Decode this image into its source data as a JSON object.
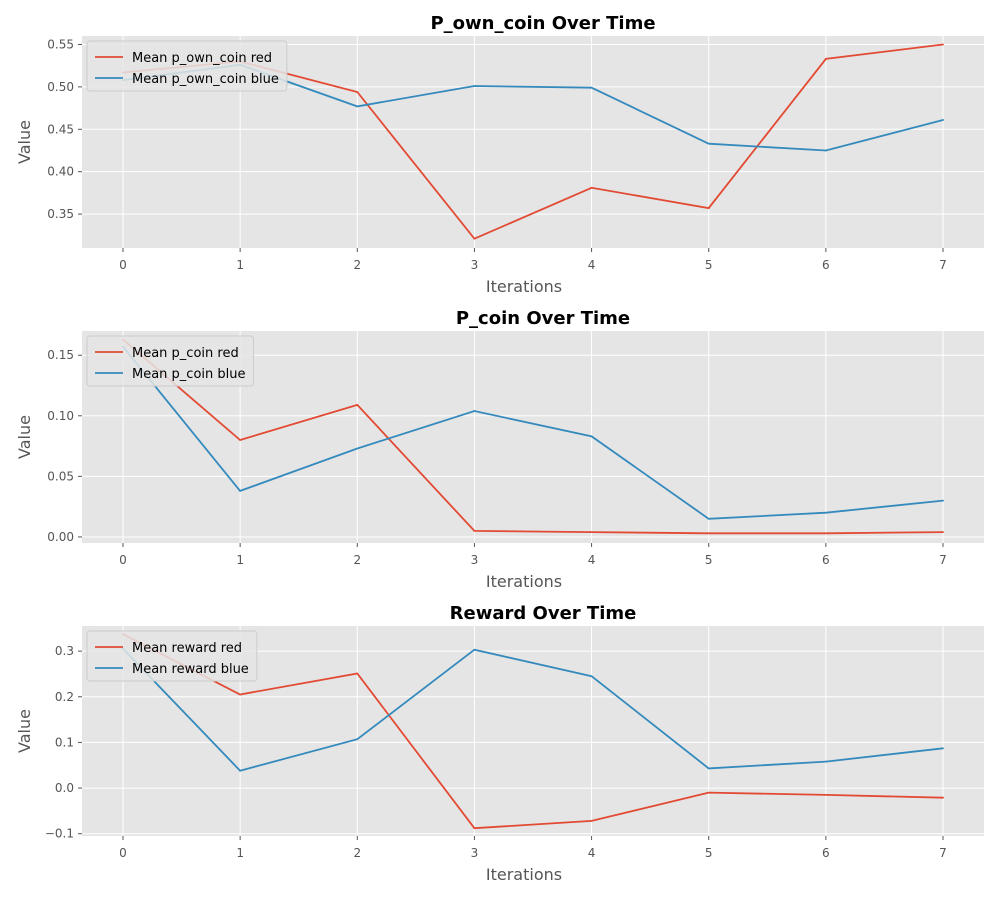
{
  "chart_data": [
    {
      "type": "line",
      "title": "P_own_coin Over Time",
      "xlabel": "Iterations",
      "ylabel": "Value",
      "x": [
        0,
        1,
        2,
        3,
        4,
        5,
        6,
        7
      ],
      "xlim": [
        -0.35,
        7.35
      ],
      "ylim": [
        0.31,
        0.56
      ],
      "xticks": [
        "0",
        "1",
        "2",
        "3",
        "4",
        "5",
        "6",
        "7"
      ],
      "yticks": [
        "0.35",
        "0.40",
        "0.45",
        "0.50",
        "0.55"
      ],
      "ytick_values": [
        0.35,
        0.4,
        0.45,
        0.5,
        0.55
      ],
      "grid": true,
      "legend": "upper-left",
      "series": [
        {
          "name": "Mean p_own_coin red",
          "color": "#e24a33",
          "values": [
            0.517,
            0.53,
            0.494,
            0.321,
            0.381,
            0.357,
            0.533,
            0.55
          ]
        },
        {
          "name": "Mean p_own_coin blue",
          "color": "#348abd",
          "values": [
            0.508,
            0.526,
            0.477,
            0.501,
            0.499,
            0.433,
            0.425,
            0.461
          ]
        }
      ]
    },
    {
      "type": "line",
      "title": "P_coin Over Time",
      "xlabel": "Iterations",
      "ylabel": "Value",
      "x": [
        0,
        1,
        2,
        3,
        4,
        5,
        6,
        7
      ],
      "xlim": [
        -0.35,
        7.35
      ],
      "ylim": [
        -0.005,
        0.17
      ],
      "xticks": [
        "0",
        "1",
        "2",
        "3",
        "4",
        "5",
        "6",
        "7"
      ],
      "yticks": [
        "0.00",
        "0.05",
        "0.10",
        "0.15"
      ],
      "ytick_values": [
        0.0,
        0.05,
        0.1,
        0.15
      ],
      "grid": true,
      "legend": "upper-left",
      "series": [
        {
          "name": "Mean p_coin red",
          "color": "#e24a33",
          "values": [
            0.163,
            0.08,
            0.109,
            0.005,
            0.004,
            0.003,
            0.003,
            0.004
          ]
        },
        {
          "name": "Mean p_coin blue",
          "color": "#348abd",
          "values": [
            0.157,
            0.038,
            0.073,
            0.104,
            0.083,
            0.015,
            0.02,
            0.03
          ]
        }
      ]
    },
    {
      "type": "line",
      "title": "Reward Over Time",
      "xlabel": "Iterations",
      "ylabel": "Value",
      "x": [
        0,
        1,
        2,
        3,
        4,
        5,
        6,
        7
      ],
      "xlim": [
        -0.35,
        7.35
      ],
      "ylim": [
        -0.105,
        0.355
      ],
      "xticks": [
        "0",
        "1",
        "2",
        "3",
        "4",
        "5",
        "6",
        "7"
      ],
      "yticks": [
        "−0.1",
        "0.0",
        "0.1",
        "0.2",
        "0.3"
      ],
      "ytick_values": [
        -0.1,
        0.0,
        0.1,
        0.2,
        0.3
      ],
      "grid": true,
      "legend": "upper-left",
      "series": [
        {
          "name": "Mean reward red",
          "color": "#e24a33",
          "values": [
            0.337,
            0.205,
            0.251,
            -0.088,
            -0.072,
            -0.01,
            -0.015,
            -0.021
          ]
        },
        {
          "name": "Mean reward blue",
          "color": "#348abd",
          "values": [
            0.305,
            0.038,
            0.107,
            0.303,
            0.245,
            0.043,
            0.058,
            0.087
          ]
        }
      ]
    }
  ]
}
